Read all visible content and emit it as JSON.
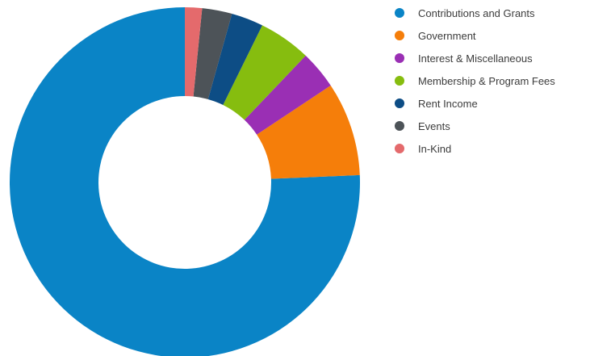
{
  "chart_data": {
    "type": "pie",
    "donut": true,
    "legend_position": "right",
    "categories": [
      "Contributions and Grants",
      "Government",
      "Interest & Miscellaneous",
      "Membership & Program Fees",
      "Rent Income",
      "Events",
      "In-Kind"
    ],
    "values": [
      76.8,
      8.8,
      3.6,
      4.9,
      3.0,
      2.8,
      1.6
    ],
    "unit": "%",
    "colors": [
      "#0a84c6",
      "#f57e0a",
      "#9a2fb4",
      "#86bd0f",
      "#0d4d85",
      "#4d5358",
      "#e46a6c"
    ],
    "start_angle_deg": 0,
    "direction": "counter-clockwise"
  }
}
